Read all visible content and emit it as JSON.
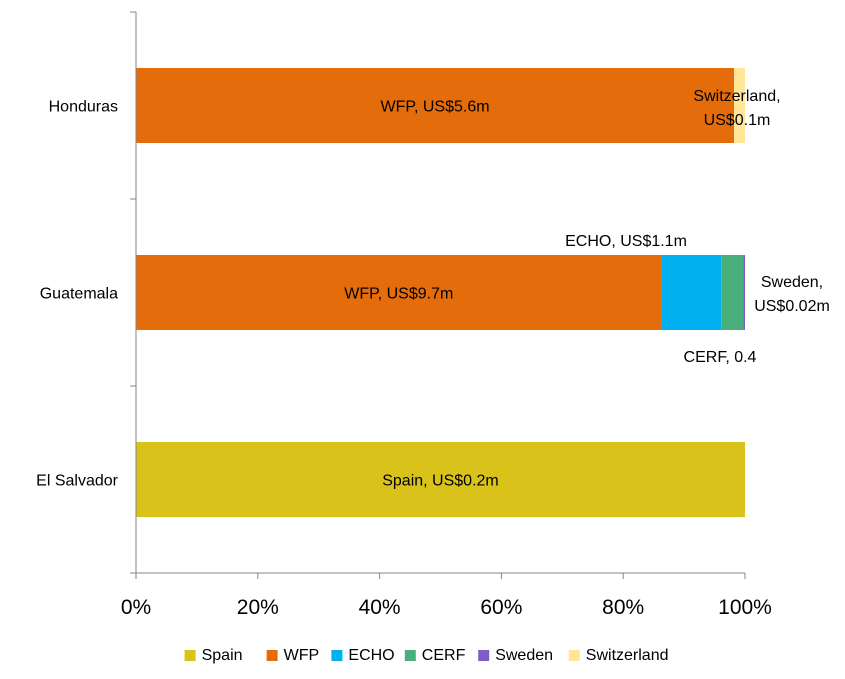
{
  "chart_data": {
    "type": "bar",
    "orientation": "horizontal",
    "stacked": "percent",
    "categories": [
      "El Salvador",
      "Guatemala",
      "Honduras"
    ],
    "xlim": [
      0,
      100
    ],
    "x_ticks": [
      0,
      20,
      40,
      60,
      80,
      100
    ],
    "x_tick_labels": [
      "0%",
      "20%",
      "40%",
      "60%",
      "80%",
      "100%"
    ],
    "grid": false,
    "legend_position": "bottom",
    "series": [
      {
        "name": "Spain",
        "color": "#D9C31A",
        "values": [
          100,
          0,
          0
        ]
      },
      {
        "name": "WFP",
        "color": "#E46C0A",
        "values": [
          0,
          86.3,
          98.2
        ]
      },
      {
        "name": "ECHO",
        "color": "#00B0F0",
        "values": [
          0,
          9.8,
          0
        ]
      },
      {
        "name": "CERF",
        "color": "#4BAF7D",
        "values": [
          0,
          3.6,
          0
        ]
      },
      {
        "name": "Sweden",
        "color": "#7F5CC8",
        "values": [
          0,
          0.3,
          0
        ]
      },
      {
        "name": "Switzerland",
        "color": "#FFE699",
        "values": [
          0,
          0,
          1.8
        ]
      }
    ],
    "annotations": [
      {
        "category": "Honduras",
        "series": "WFP",
        "text": "WFP, US$5.6m"
      },
      {
        "category": "Honduras",
        "series": "Switzerland",
        "text": "Switzerland, US$0.1m"
      },
      {
        "category": "Guatemala",
        "series": "WFP",
        "text": "WFP, US$9.7m"
      },
      {
        "category": "Guatemala",
        "series": "ECHO",
        "text": "ECHO, US$1.1m"
      },
      {
        "category": "Guatemala",
        "series": "Sweden",
        "text": "Sweden, US$0.02m"
      },
      {
        "category": "Guatemala",
        "series": "CERF",
        "text": "CERF, 0.4"
      },
      {
        "category": "El Salvador",
        "series": "Spain",
        "text": "Spain, US$0.2m"
      }
    ]
  }
}
